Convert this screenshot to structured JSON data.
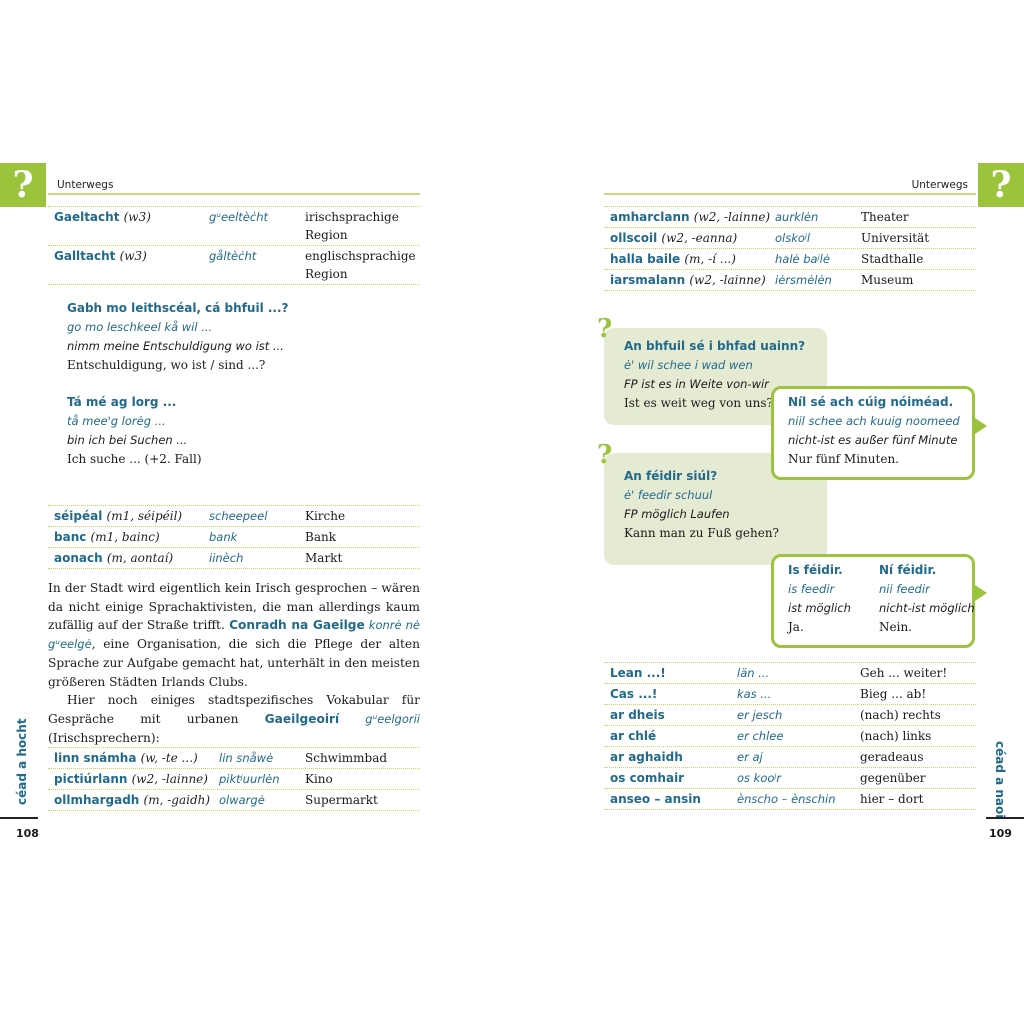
{
  "left_page": {
    "header": "Unterwegs",
    "icon": "question-mark",
    "page_number": "108",
    "page_word": "céad a hocht",
    "table1": [
      {
        "irish": "Gaeltacht",
        "gram": "(w3)",
        "pron": "gᵘeeltèċht",
        "german": "irischsprachige Region"
      },
      {
        "irish": "Galltacht",
        "gram": "(w3)",
        "pron": "gåltèċht",
        "german": "englischsprachige Region"
      }
    ],
    "phrase1": {
      "irish": "Gabh mo leithscéal, cá bhfuil ...?",
      "pron": "go mo leschkeel kå wil ...",
      "literal": "nimm meine Entschuldigung wo ist ...",
      "german": "Entschuldigung, wo ist / sind ...?"
    },
    "phrase2": {
      "irish": "Tá mé ag lorg ...",
      "pron": "tå mee'g lorėg ...",
      "literal": "bin ich bei Suchen ...",
      "german": "Ich suche ... (+2. Fall)"
    },
    "table2": [
      {
        "irish": "séipéal",
        "gram": "(m1, séipéil)",
        "pron": "scheepeel",
        "german": "Kirche"
      },
      {
        "irish": "banc",
        "gram": "(m1, bainc)",
        "pron": "bank",
        "german": "Bank"
      },
      {
        "irish": "aonach",
        "gram": "(m, aontaí)",
        "pron": "iinèch",
        "german": "Markt"
      }
    ],
    "paragraph1": {
      "t1": "In der Stadt wird eigentlich kein Irisch gesprochen – wären da nicht einige Sprachaktivisten, die man allerdings kaum zufällig auf der Straße trifft. ",
      "b": "Conradh na Gaeilge",
      "p": " konrė nė gᵘeelgė",
      "t2": ", eine Organisation, die sich die Pflege der alten Sprache zur Aufgabe gemacht hat, unterhält in den meisten größeren Städten Irlands Clubs."
    },
    "paragraph2": {
      "t1": "Hier noch einiges stadtspezifisches Vokabular für Gespräche mit urbanen ",
      "b": "Gaeilgeoirí",
      "p": " gᵘeelgorii",
      "t2": " (Irischsprechern):"
    },
    "table3": [
      {
        "irish": "linn snámha",
        "gram": "(w, -te ...)",
        "pron": "lin snåwė",
        "german": "Schwimmbad"
      },
      {
        "irish": "pictiúrlann",
        "gram": "(w2, -lainne)",
        "pron": "piktʲuurlėn",
        "german": "Kino"
      },
      {
        "irish": "ollmhargadh",
        "gram": "(m, -gaidh)",
        "pron": "olwargė",
        "german": "Supermarkt"
      }
    ]
  },
  "right_page": {
    "header": "Unterwegs",
    "icon": "question-mark",
    "page_number": "109",
    "page_word": "céad a naoi",
    "table1": [
      {
        "irish": "amharclann",
        "gram": "(w2, -lainne)",
        "pron": "aurklėn",
        "german": "Theater"
      },
      {
        "irish": "ollscoil",
        "gram": "(w2, -eanna)",
        "pron": "olskoʲl",
        "german": "Universität"
      },
      {
        "irish": "halla baile",
        "gram": "(m, -í ...)",
        "pron": "halė baʲlė",
        "german": "Stadthalle"
      },
      {
        "irish": "iarsmalann",
        "gram": "(w2, -lainne)",
        "pron": "iėrsmėlėn",
        "german": "Museum"
      }
    ],
    "dialog": [
      {
        "irish": "An bhfuil sé i bhfad uainn?",
        "pron": "ė' wil schee i wad wen",
        "literal": "FP ist es in Weite von-wir",
        "german": "Ist es weit weg von uns?"
      },
      {
        "irish": "Níl sé ach cúig nóiméad.",
        "pron": "niil schee ach kuuig noomeed",
        "literal": "nicht-ist es außer fünf Minute",
        "german": "Nur fünf Minuten."
      },
      {
        "irish": "An féidir siúl?",
        "pron": "ė' feedir schuul",
        "literal": "FP möglich Laufen",
        "german": "Kann man zu Fuß gehen?"
      }
    ],
    "answers": [
      {
        "irish": "Is féidir.",
        "pron": "is feedir",
        "literal": "ist möglich",
        "german": "Ja."
      },
      {
        "irish": "Ní féidir.",
        "pron": "nii feedir",
        "literal": "nicht-ist möglich",
        "german": "Nein."
      }
    ],
    "table2": [
      {
        "irish": "Lean ...!",
        "gram": "",
        "pron": "län ...",
        "german": "Geh ... weiter!"
      },
      {
        "irish": "Cas ...!",
        "gram": "",
        "pron": "kas ...",
        "german": "Bieg ... ab!"
      },
      {
        "irish": "ar dheis",
        "gram": "",
        "pron": "er jesch",
        "german": "(nach) rechts"
      },
      {
        "irish": "ar chlé",
        "gram": "",
        "pron": "er chlee",
        "german": "(nach) links"
      },
      {
        "irish": "ar aghaidh",
        "gram": "",
        "pron": "er aj",
        "german": "geradeaus"
      },
      {
        "irish": "os comhair",
        "gram": "",
        "pron": "os kooʲr",
        "german": "gegenüber"
      },
      {
        "irish": "anseo – ansin",
        "gram": "",
        "pron": "ènscho – ènschin",
        "german": "hier – dort"
      }
    ]
  },
  "colors": {
    "accent_green": "#9bc33c",
    "irish_blue": "#226a8c",
    "bubble_bg": "#e5ebd3"
  }
}
